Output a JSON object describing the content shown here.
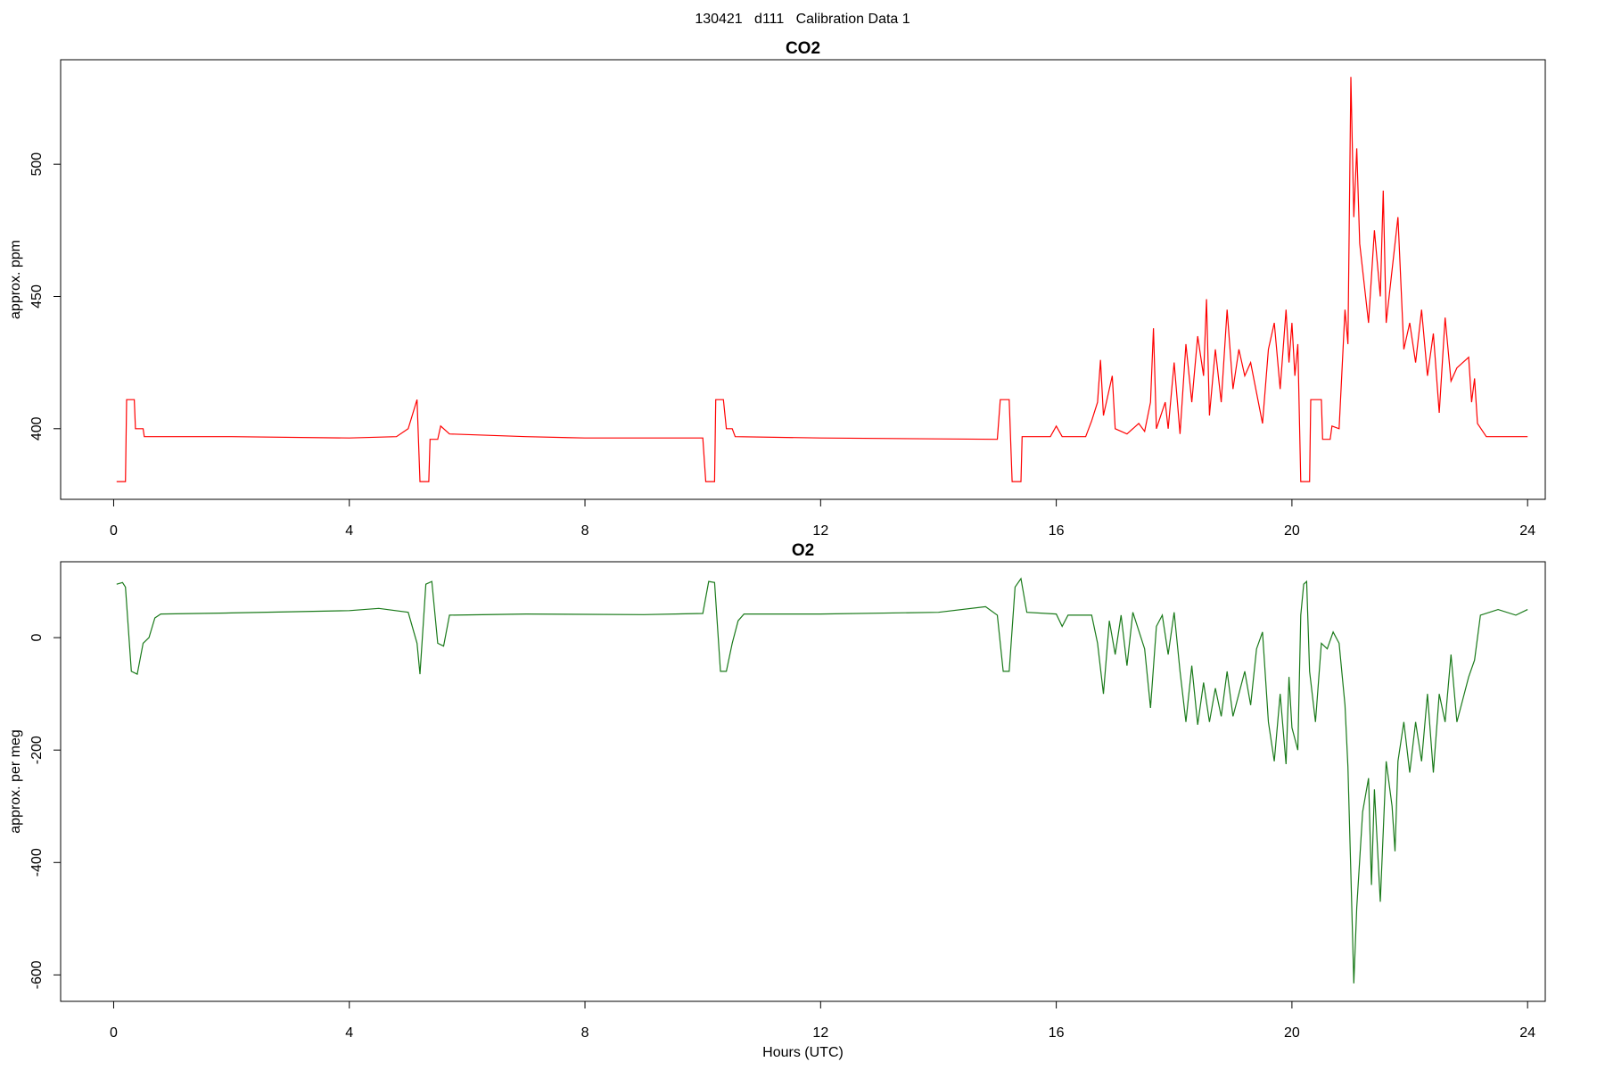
{
  "title": "130421   d111   Calibration Data 1",
  "chart_data": [
    {
      "type": "line",
      "title": "CO2",
      "ylabel": "approx. ppm",
      "color": "#ff0000",
      "xlim": [
        -0.9,
        24.3
      ],
      "xticks": [
        0,
        4,
        8,
        12,
        16,
        20,
        24
      ],
      "ylim": [
        373.3,
        539.5
      ],
      "yticks": [
        400,
        450,
        500
      ],
      "x": [
        0.05,
        0.2,
        0.22,
        0.35,
        0.37,
        0.5,
        0.52,
        2,
        4,
        4.8,
        5.0,
        5.15,
        5.2,
        5.35,
        5.37,
        5.5,
        5.55,
        5.7,
        7,
        8,
        10.0,
        10.05,
        10.2,
        10.22,
        10.35,
        10.4,
        10.5,
        10.55,
        12,
        15.0,
        15.05,
        15.2,
        15.25,
        15.4,
        15.42,
        15.9,
        16.0,
        16.1,
        16.5,
        16.6,
        16.7,
        16.75,
        16.8,
        16.9,
        16.95,
        17.0,
        17.2,
        17.4,
        17.5,
        17.6,
        17.65,
        17.7,
        17.85,
        17.9,
        18.0,
        18.1,
        18.2,
        18.3,
        18.4,
        18.5,
        18.55,
        18.6,
        18.7,
        18.8,
        18.9,
        19.0,
        19.1,
        19.2,
        19.3,
        19.5,
        19.6,
        19.7,
        19.8,
        19.9,
        19.95,
        20.0,
        20.05,
        20.1,
        20.15,
        20.3,
        20.32,
        20.5,
        20.52,
        20.65,
        20.68,
        20.8,
        20.9,
        20.95,
        21.0,
        21.05,
        21.1,
        21.15,
        21.2,
        21.3,
        21.4,
        21.5,
        21.55,
        21.6,
        21.7,
        21.8,
        21.9,
        22.0,
        22.1,
        22.2,
        22.3,
        22.4,
        22.5,
        22.6,
        22.7,
        22.8,
        23.0,
        23.05,
        23.1,
        23.15,
        23.3,
        24.0
      ],
      "values": [
        380,
        380,
        411,
        411,
        400,
        400,
        397,
        397,
        396.5,
        397,
        400,
        411,
        380,
        380,
        396,
        396,
        401,
        398,
        397,
        396.5,
        396.5,
        380,
        380,
        411,
        411,
        400,
        400,
        397,
        396.5,
        396,
        411,
        411,
        380,
        380,
        397,
        397,
        401,
        397,
        397,
        403,
        410,
        426,
        405,
        415,
        420,
        400,
        398,
        402,
        399,
        410,
        438,
        400,
        410,
        400,
        425,
        398,
        432,
        410,
        435,
        420,
        449,
        405,
        430,
        410,
        445,
        415,
        430,
        420,
        425,
        402,
        430,
        440,
        415,
        445,
        425,
        440,
        420,
        432,
        380,
        380,
        411,
        411,
        396,
        396,
        401,
        400,
        445,
        432,
        533,
        480,
        506,
        470,
        460,
        440,
        475,
        450,
        490,
        440,
        460,
        480,
        430,
        440,
        425,
        445,
        420,
        436,
        406,
        442,
        418,
        423,
        427,
        410,
        419,
        402,
        397,
        397
      ]
    },
    {
      "type": "line",
      "title": "O2",
      "ylabel": "approx. per meg",
      "xlabel": "Hours (UTC)",
      "color": "#1a7a1a",
      "xlim": [
        -0.9,
        24.3
      ],
      "xticks": [
        0,
        4,
        8,
        12,
        16,
        20,
        24
      ],
      "ylim": [
        -647,
        135
      ],
      "yticks": [
        0,
        -200,
        -400,
        -600
      ],
      "x": [
        0.05,
        0.15,
        0.2,
        0.3,
        0.4,
        0.5,
        0.6,
        0.7,
        0.8,
        2,
        3,
        4,
        4.5,
        5.0,
        5.15,
        5.2,
        5.3,
        5.4,
        5.5,
        5.6,
        5.7,
        7,
        9,
        10.0,
        10.1,
        10.2,
        10.3,
        10.4,
        10.5,
        10.6,
        10.7,
        12,
        14,
        14.8,
        15.0,
        15.1,
        15.2,
        15.3,
        15.4,
        15.5,
        16.0,
        16.1,
        16.2,
        16.6,
        16.7,
        16.8,
        16.9,
        17.0,
        17.1,
        17.2,
        17.3,
        17.5,
        17.6,
        17.7,
        17.8,
        17.9,
        18.0,
        18.1,
        18.2,
        18.3,
        18.4,
        18.5,
        18.6,
        18.7,
        18.8,
        18.9,
        19.0,
        19.1,
        19.2,
        19.3,
        19.4,
        19.5,
        19.6,
        19.7,
        19.8,
        19.9,
        19.95,
        20.0,
        20.1,
        20.15,
        20.2,
        20.25,
        20.3,
        20.4,
        20.5,
        20.6,
        20.7,
        20.8,
        20.9,
        20.95,
        21.0,
        21.05,
        21.1,
        21.2,
        21.3,
        21.35,
        21.4,
        21.5,
        21.6,
        21.7,
        21.75,
        21.8,
        21.9,
        22.0,
        22.1,
        22.2,
        22.3,
        22.4,
        22.5,
        22.6,
        22.7,
        22.8,
        22.9,
        23.0,
        23.1,
        23.2,
        23.5,
        23.8,
        24.0
      ],
      "values": [
        95,
        98,
        90,
        -60,
        -65,
        -10,
        0,
        35,
        42,
        44,
        46,
        48,
        52,
        45,
        -10,
        -65,
        95,
        100,
        -10,
        -15,
        40,
        42,
        41,
        43,
        100,
        98,
        -60,
        -60,
        -10,
        30,
        42,
        42,
        45,
        55,
        40,
        -60,
        -60,
        90,
        105,
        45,
        42,
        20,
        40,
        40,
        -10,
        -100,
        30,
        -30,
        40,
        -50,
        45,
        -20,
        -125,
        20,
        40,
        -30,
        45,
        -60,
        -150,
        -50,
        -155,
        -80,
        -150,
        -90,
        -140,
        -60,
        -140,
        -100,
        -60,
        -120,
        -20,
        10,
        -150,
        -220,
        -100,
        -225,
        -70,
        -160,
        -200,
        40,
        95,
        100,
        -60,
        -150,
        -10,
        -20,
        10,
        -10,
        -120,
        -230,
        -420,
        -615,
        -480,
        -310,
        -250,
        -440,
        -270,
        -470,
        -220,
        -300,
        -380,
        -220,
        -150,
        -240,
        -150,
        -220,
        -100,
        -240,
        -100,
        -150,
        -30,
        -150,
        -110,
        -70,
        -40,
        40,
        50,
        40,
        50
      ]
    }
  ]
}
